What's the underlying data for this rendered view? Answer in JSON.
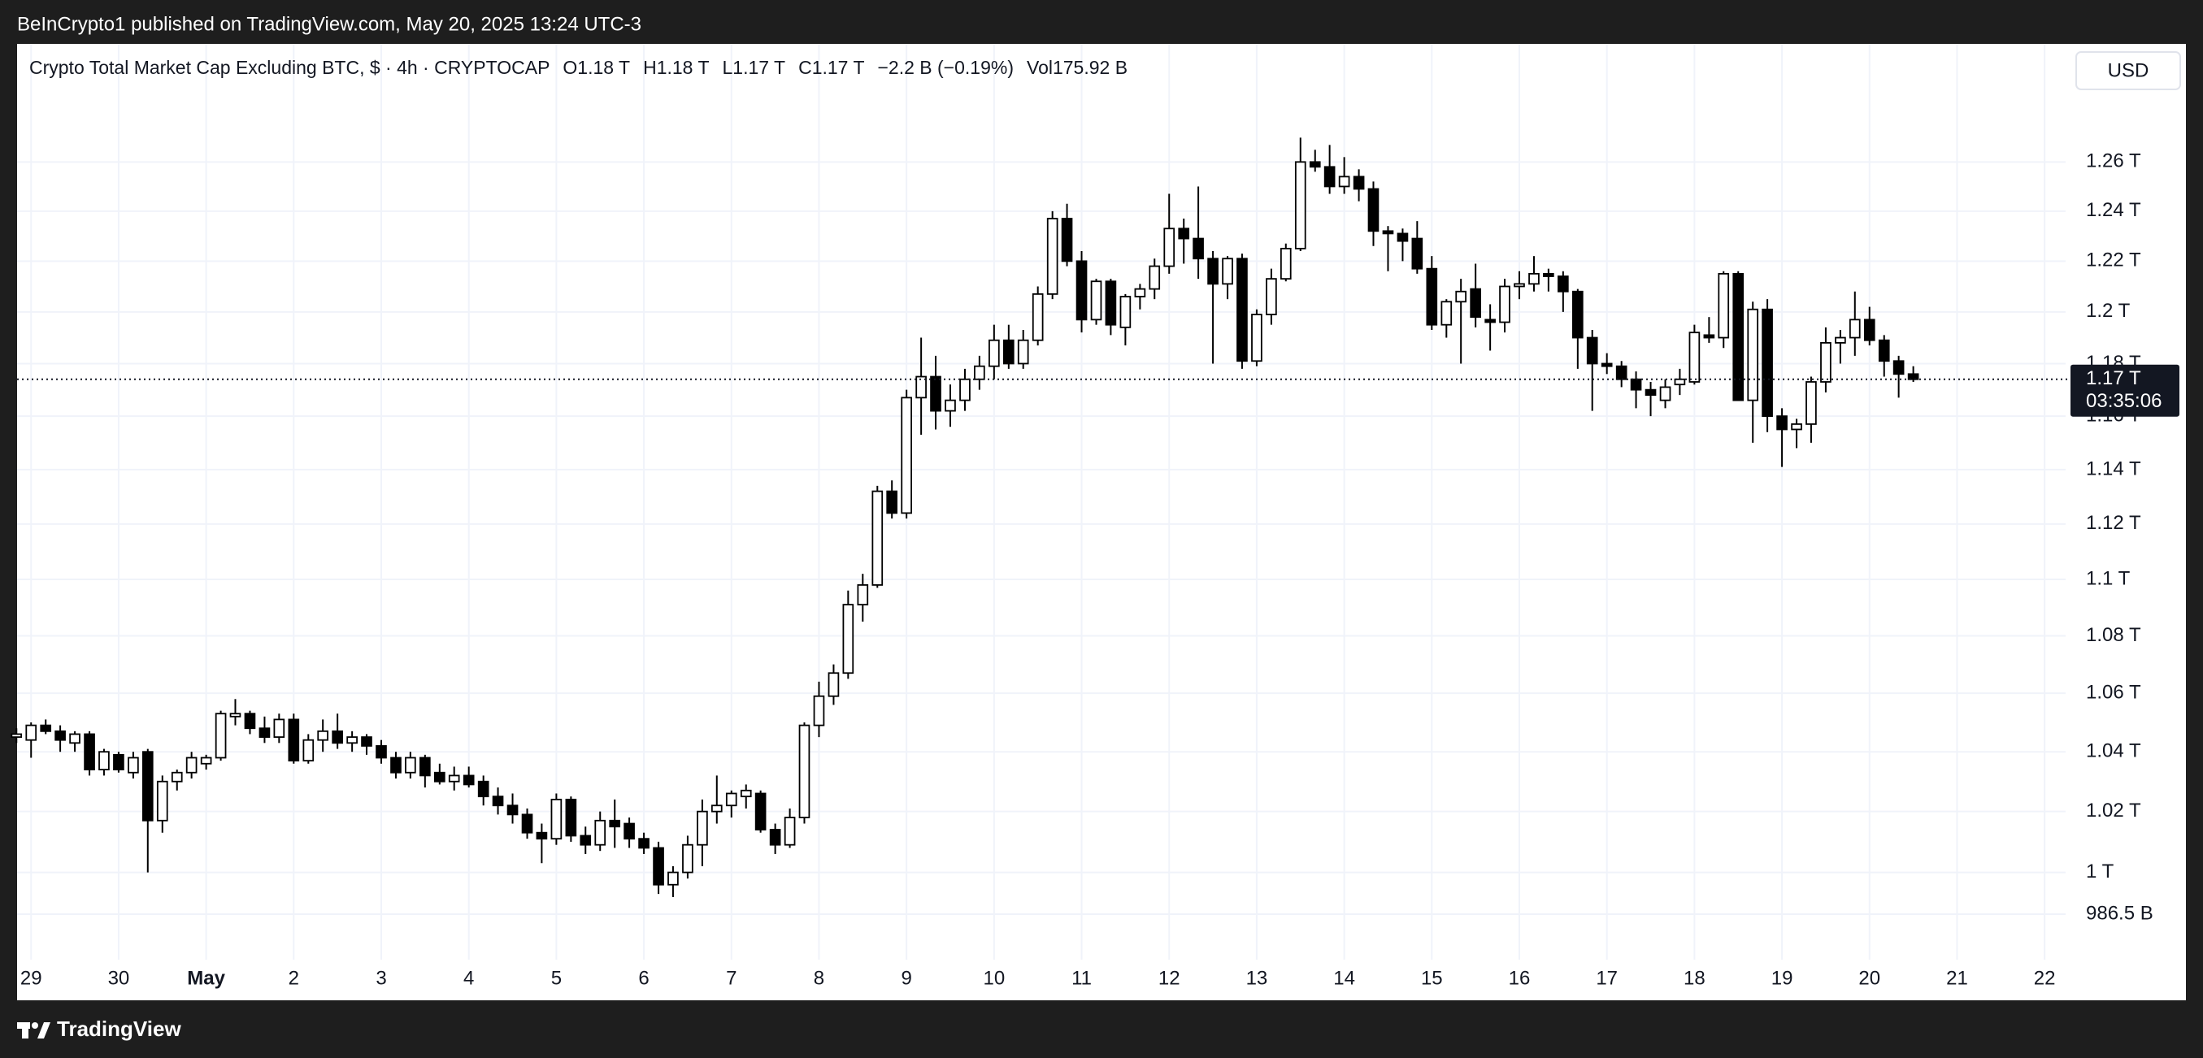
{
  "header": {
    "publisher": "BeInCrypto1 published on TradingView.com, May 20, 2025 13:24 UTC-3"
  },
  "footer": {
    "brand": "TradingView"
  },
  "chart_data": {
    "type": "candlestick",
    "title": "Crypto Total Market Cap Excluding BTC, $ · 4h · CRYPTOCAP",
    "legend_values": [
      "O1.18 T",
      "H1.18 T",
      "L1.17 T",
      "C1.17 T",
      "−2.2 B (−0.19%)",
      "Vol175.92 B"
    ],
    "currency": "USD",
    "last_price_label": "1.17 T",
    "countdown": "03:35:06",
    "up_color": "#ffffff",
    "down_color": "#000000",
    "border_color": "#000000",
    "grid": true,
    "log_scale": true,
    "xlim": [
      -0.16,
      23.24
    ],
    "ylim": [
      0.972,
      1.309
    ],
    "xticks": [
      {
        "value": 0,
        "label": "29"
      },
      {
        "value": 1,
        "label": "30"
      },
      {
        "value": 2,
        "label": "May"
      },
      {
        "value": 3,
        "label": "2"
      },
      {
        "value": 4,
        "label": "3"
      },
      {
        "value": 5,
        "label": "4"
      },
      {
        "value": 6,
        "label": "5"
      },
      {
        "value": 7,
        "label": "6"
      },
      {
        "value": 8,
        "label": "7"
      },
      {
        "value": 9,
        "label": "8"
      },
      {
        "value": 10,
        "label": "9"
      },
      {
        "value": 11,
        "label": "10"
      },
      {
        "value": 12,
        "label": "11"
      },
      {
        "value": 13,
        "label": "12"
      },
      {
        "value": 14,
        "label": "13"
      },
      {
        "value": 15,
        "label": "14"
      },
      {
        "value": 16,
        "label": "15"
      },
      {
        "value": 17,
        "label": "16"
      },
      {
        "value": 18,
        "label": "17"
      },
      {
        "value": 19,
        "label": "18"
      },
      {
        "value": 20,
        "label": "19"
      },
      {
        "value": 21,
        "label": "20"
      },
      {
        "value": 22,
        "label": "21"
      },
      {
        "value": 23,
        "label": "22"
      }
    ],
    "yticks": [
      {
        "value": 1.26,
        "label": "1.26 T"
      },
      {
        "value": 1.24,
        "label": "1.24 T"
      },
      {
        "value": 1.22,
        "label": "1.22 T"
      },
      {
        "value": 1.2,
        "label": "1.2 T"
      },
      {
        "value": 1.18,
        "label": "1.18 T"
      },
      {
        "value": 1.16,
        "label": "1.16 T"
      },
      {
        "value": 1.14,
        "label": "1.14 T"
      },
      {
        "value": 1.12,
        "label": "1.12 T"
      },
      {
        "value": 1.1,
        "label": "1.1 T"
      },
      {
        "value": 1.08,
        "label": "1.08 T"
      },
      {
        "value": 1.06,
        "label": "1.06 T"
      },
      {
        "value": 1.04,
        "label": "1.04 T"
      },
      {
        "value": 1.02,
        "label": "1.02 T"
      },
      {
        "value": 1,
        "label": "1 T"
      },
      {
        "value": 0.9865,
        "label": "986.5 B"
      }
    ],
    "x": [
      -0.167,
      0,
      0.167,
      0.333,
      0.5,
      0.667,
      0.833,
      1,
      1.167,
      1.333,
      1.5,
      1.667,
      1.833,
      2,
      2.167,
      2.333,
      2.5,
      2.667,
      2.833,
      3,
      3.167,
      3.333,
      3.5,
      3.667,
      3.833,
      4,
      4.167,
      4.333,
      4.5,
      4.667,
      4.833,
      5,
      5.167,
      5.333,
      5.5,
      5.667,
      5.833,
      6,
      6.167,
      6.333,
      6.5,
      6.667,
      6.833,
      7,
      7.167,
      7.333,
      7.5,
      7.667,
      7.833,
      8,
      8.167,
      8.333,
      8.5,
      8.667,
      8.833,
      9,
      9.167,
      9.333,
      9.5,
      9.667,
      9.833,
      10,
      10.167,
      10.333,
      10.5,
      10.667,
      10.833,
      11,
      11.167,
      11.333,
      11.5,
      11.667,
      11.833,
      12,
      12.167,
      12.333,
      12.5,
      12.667,
      12.833,
      13,
      13.167,
      13.333,
      13.5,
      13.667,
      13.833,
      14,
      14.167,
      14.333,
      14.5,
      14.667,
      14.833,
      15,
      15.167,
      15.333,
      15.5,
      15.667,
      15.833,
      16,
      16.167,
      16.333,
      16.5,
      16.667,
      16.833,
      17,
      17.167,
      17.333,
      17.5,
      17.667,
      17.833,
      18,
      18.167,
      18.333,
      18.5,
      18.667,
      18.833,
      19,
      19.167,
      19.333,
      19.5,
      19.667,
      19.833,
      20,
      20.167,
      20.333,
      20.5,
      20.667,
      20.833,
      21,
      21.167,
      21.333,
      21.5
    ],
    "open": [
      1.045,
      1.044,
      1.049,
      1.047,
      1.043,
      1.046,
      1.034,
      1.039,
      1.033,
      1.04,
      1.017,
      1.03,
      1.033,
      1.036,
      1.038,
      1.052,
      1.053,
      1.048,
      1.045,
      1.051,
      1.037,
      1.044,
      1.047,
      1.043,
      1.045,
      1.042,
      1.038,
      1.033,
      1.038,
      1.033,
      1.03,
      1.032,
      1.03,
      1.025,
      1.022,
      1.019,
      1.013,
      1.011,
      1.024,
      1.012,
      1.009,
      1.017,
      1.016,
      1.011,
      1.008,
      0.996,
      1.0,
      1.009,
      1.02,
      1.022,
      1.025,
      1.026,
      1.014,
      1.009,
      1.018,
      1.049,
      1.059,
      1.067,
      1.091,
      1.098,
      1.132,
      1.124,
      1.167,
      1.175,
      1.162,
      1.166,
      1.174,
      1.179,
      1.189,
      1.18,
      1.189,
      1.207,
      1.237,
      1.22,
      1.197,
      1.212,
      1.194,
      1.206,
      1.209,
      1.218,
      1.233,
      1.229,
      1.221,
      1.211,
      1.221,
      1.181,
      1.199,
      1.213,
      1.225,
      1.26,
      1.258,
      1.25,
      1.254,
      1.249,
      1.232,
      1.231,
      1.229,
      1.217,
      1.195,
      1.204,
      1.209,
      1.197,
      1.196,
      1.21,
      1.211,
      1.215,
      1.214,
      1.208,
      1.19,
      1.18,
      1.179,
      1.174,
      1.17,
      1.166,
      1.172,
      1.173,
      1.191,
      1.19,
      1.215,
      1.166,
      1.201,
      1.16,
      1.155,
      1.157,
      1.173,
      1.188,
      1.19,
      1.197,
      1.189,
      1.181,
      1.176
    ],
    "high": [
      1.048,
      1.05,
      1.051,
      1.049,
      1.047,
      1.047,
      1.041,
      1.04,
      1.04,
      1.041,
      1.032,
      1.034,
      1.04,
      1.039,
      1.054,
      1.058,
      1.054,
      1.052,
      1.053,
      1.053,
      1.046,
      1.051,
      1.053,
      1.047,
      1.046,
      1.044,
      1.04,
      1.04,
      1.039,
      1.036,
      1.035,
      1.035,
      1.032,
      1.028,
      1.026,
      1.021,
      1.016,
      1.026,
      1.025,
      1.015,
      1.02,
      1.024,
      1.018,
      1.013,
      1.01,
      1.002,
      1.012,
      1.024,
      1.032,
      1.027,
      1.029,
      1.027,
      1.016,
      1.021,
      1.05,
      1.064,
      1.07,
      1.096,
      1.102,
      1.134,
      1.136,
      1.17,
      1.19,
      1.183,
      1.172,
      1.178,
      1.183,
      1.195,
      1.195,
      1.193,
      1.21,
      1.24,
      1.243,
      1.224,
      1.213,
      1.213,
      1.207,
      1.211,
      1.221,
      1.247,
      1.237,
      1.25,
      1.224,
      1.222,
      1.223,
      1.201,
      1.217,
      1.227,
      1.27,
      1.265,
      1.267,
      1.262,
      1.257,
      1.252,
      1.234,
      1.233,
      1.236,
      1.222,
      1.205,
      1.213,
      1.219,
      1.203,
      1.213,
      1.216,
      1.222,
      1.217,
      1.216,
      1.209,
      1.193,
      1.184,
      1.181,
      1.177,
      1.173,
      1.174,
      1.178,
      1.195,
      1.198,
      1.216,
      1.216,
      1.204,
      1.205,
      1.163,
      1.159,
      1.175,
      1.194,
      1.193,
      1.208,
      1.202,
      1.191,
      1.183,
      1.179
    ],
    "low": [
      1.043,
      1.038,
      1.046,
      1.04,
      1.04,
      1.032,
      1.032,
      1.033,
      1.031,
      1.0,
      1.013,
      1.027,
      1.031,
      1.034,
      1.037,
      1.049,
      1.046,
      1.043,
      1.043,
      1.036,
      1.036,
      1.04,
      1.041,
      1.04,
      1.039,
      1.036,
      1.031,
      1.031,
      1.028,
      1.029,
      1.027,
      1.028,
      1.022,
      1.019,
      1.016,
      1.011,
      1.003,
      1.009,
      1.01,
      1.006,
      1.007,
      1.008,
      1.008,
      1.006,
      0.993,
      0.992,
      0.998,
      1.002,
      1.016,
      1.018,
      1.021,
      1.013,
      1.006,
      1.008,
      1.016,
      1.045,
      1.056,
      1.065,
      1.085,
      1.097,
      1.122,
      1.122,
      1.153,
      1.155,
      1.156,
      1.162,
      1.17,
      1.174,
      1.178,
      1.178,
      1.187,
      1.205,
      1.218,
      1.192,
      1.195,
      1.191,
      1.187,
      1.201,
      1.205,
      1.215,
      1.219,
      1.213,
      1.18,
      1.205,
      1.178,
      1.179,
      1.195,
      1.212,
      1.224,
      1.256,
      1.247,
      1.247,
      1.244,
      1.226,
      1.216,
      1.22,
      1.215,
      1.193,
      1.19,
      1.18,
      1.194,
      1.185,
      1.192,
      1.205,
      1.208,
      1.208,
      1.2,
      1.178,
      1.162,
      1.176,
      1.171,
      1.163,
      1.16,
      1.163,
      1.168,
      1.172,
      1.188,
      1.186,
      1.166,
      1.15,
      1.154,
      1.141,
      1.148,
      1.15,
      1.169,
      1.18,
      1.183,
      1.187,
      1.175,
      1.167,
      1.173
    ],
    "close": [
      1.046,
      1.049,
      1.047,
      1.044,
      1.046,
      1.034,
      1.04,
      1.034,
      1.038,
      1.017,
      1.03,
      1.033,
      1.038,
      1.038,
      1.053,
      1.053,
      1.048,
      1.045,
      1.051,
      1.037,
      1.044,
      1.047,
      1.043,
      1.045,
      1.042,
      1.038,
      1.033,
      1.038,
      1.032,
      1.03,
      1.032,
      1.029,
      1.025,
      1.022,
      1.019,
      1.013,
      1.011,
      1.024,
      1.012,
      1.009,
      1.017,
      1.015,
      1.011,
      1.008,
      0.996,
      1.0,
      1.009,
      1.02,
      1.022,
      1.026,
      1.027,
      1.014,
      1.009,
      1.018,
      1.049,
      1.059,
      1.067,
      1.091,
      1.098,
      1.132,
      1.124,
      1.167,
      1.175,
      1.162,
      1.166,
      1.174,
      1.179,
      1.189,
      1.18,
      1.189,
      1.207,
      1.237,
      1.22,
      1.197,
      1.212,
      1.195,
      1.206,
      1.209,
      1.218,
      1.233,
      1.229,
      1.221,
      1.211,
      1.221,
      1.181,
      1.199,
      1.213,
      1.225,
      1.26,
      1.258,
      1.25,
      1.254,
      1.249,
      1.232,
      1.231,
      1.228,
      1.217,
      1.195,
      1.204,
      1.208,
      1.198,
      1.196,
      1.21,
      1.211,
      1.215,
      1.214,
      1.208,
      1.19,
      1.18,
      1.179,
      1.174,
      1.17,
      1.168,
      1.171,
      1.174,
      1.192,
      1.19,
      1.215,
      1.166,
      1.201,
      1.16,
      1.155,
      1.157,
      1.173,
      1.188,
      1.19,
      1.197,
      1.189,
      1.181,
      1.176,
      1.174
    ]
  }
}
